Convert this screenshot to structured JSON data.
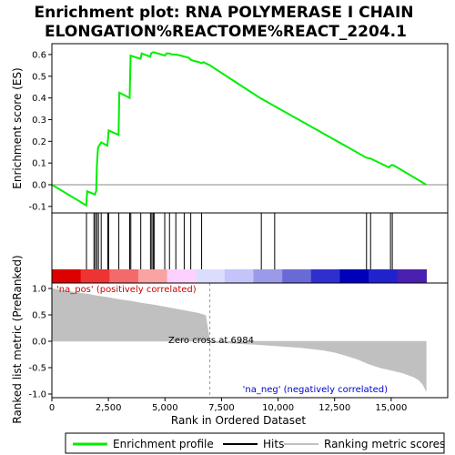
{
  "chart_data": {
    "type": "line",
    "title_line1": "Enrichment plot: RNA POLYMERASE I CHAIN",
    "title_line2": "ELONGATION%REACTOME%REACT_2204.1",
    "top_panel": {
      "ylabel": "Enrichment score (ES)",
      "ylim": [
        -0.13,
        0.65
      ],
      "yticks": [
        -0.1,
        0.0,
        0.1,
        0.2,
        0.3,
        0.4,
        0.5,
        0.6
      ],
      "ytick_labels": [
        "-0.1",
        "0.0",
        "0.1",
        "0.2",
        "0.3",
        "0.4",
        "0.5",
        "0.6"
      ],
      "line_color": "#00ee00",
      "series": [
        {
          "x": [
            0,
            1520,
            1560,
            1900,
            1960,
            1990,
            2040,
            2060,
            2180,
            2460,
            2510,
            2950,
            2980,
            3440,
            3480,
            3920,
            3970,
            4350,
            4390,
            4470,
            4520,
            5000,
            5060,
            5200,
            5300,
            5480,
            5700,
            5880,
            6060,
            6150,
            6300,
            6520,
            6620,
            6700,
            6984,
            9200,
            13900,
            14100,
            14900,
            15000,
            15100,
            16550
          ],
          "y": [
            0.0,
            -0.095,
            -0.03,
            -0.045,
            -0.03,
            0.09,
            0.17,
            0.175,
            0.195,
            0.18,
            0.25,
            0.23,
            0.425,
            0.4,
            0.595,
            0.58,
            0.605,
            0.59,
            0.605,
            0.61,
            0.61,
            0.595,
            0.605,
            0.605,
            0.6,
            0.6,
            0.595,
            0.59,
            0.585,
            0.575,
            0.57,
            0.565,
            0.56,
            0.565,
            0.55,
            0.4,
            0.125,
            0.12,
            0.08,
            0.09,
            0.09,
            0.0
          ]
        }
      ]
    },
    "hits": [
      1530,
      1860,
      1920,
      1990,
      2060,
      2180,
      2470,
      2510,
      2960,
      3440,
      3490,
      3930,
      4360,
      4420,
      4480,
      4520,
      4990,
      5200,
      5480,
      5850,
      6140,
      6620,
      9260,
      9850,
      13910,
      14090,
      14970,
      15050
    ],
    "ranking_bar_colors": [
      "#dd0000",
      "#ee3333",
      "#f46a6a",
      "#f9a3a3",
      "#fdd0fd",
      "#dcdcfd",
      "#c4c4fb",
      "#9a9ae8",
      "#6a6ad6",
      "#2f2fcf",
      "#0000bb",
      "#2222cc",
      "#4b1fb0"
    ],
    "bottom_panel": {
      "ylabel": "Ranked list metric (PreRanked)",
      "ylim": [
        -1.0,
        1.0
      ],
      "yticks": [
        -1.0,
        -0.5,
        0.0,
        0.5,
        1.0
      ],
      "ytick_labels": [
        "-1.0",
        "-0.5",
        "0.0",
        "0.5",
        "1.0"
      ],
      "metric_profile": {
        "x": [
          0,
          400,
          1000,
          1500,
          2000,
          2500,
          3000,
          3500,
          4000,
          4500,
          5000,
          5500,
          6000,
          6500,
          6800,
          6984,
          7000,
          8000,
          9000,
          10000,
          11000,
          12000,
          12500,
          13000,
          13500,
          14000,
          14500,
          15000,
          15500,
          16000,
          16200,
          16400,
          16550
        ],
        "y": [
          1.0,
          0.97,
          0.93,
          0.9,
          0.86,
          0.83,
          0.79,
          0.76,
          0.72,
          0.69,
          0.65,
          0.61,
          0.57,
          0.53,
          0.49,
          0.0,
          -0.02,
          -0.04,
          -0.06,
          -0.09,
          -0.12,
          -0.17,
          -0.21,
          -0.27,
          -0.34,
          -0.43,
          -0.5,
          -0.55,
          -0.6,
          -0.68,
          -0.73,
          -0.82,
          -0.95
        ]
      },
      "fill_color": "#c0c0c0",
      "zero_cross_label": "Zero cross at 6984",
      "pos_label": "'na_pos' (positively correlated)",
      "neg_label": "'na_neg' (negatively correlated)"
    },
    "xlabel": "Rank in Ordered Dataset",
    "xlim": [
      0,
      17500
    ],
    "xticks": [
      0,
      2500,
      5000,
      7500,
      10000,
      12500,
      15000
    ],
    "xtick_labels": [
      "0",
      "2,500",
      "5,000",
      "7,500",
      "10,000",
      "12,500",
      "15,000"
    ],
    "legend": {
      "items": [
        {
          "label": "Enrichment profile",
          "color": "#00ee00"
        },
        {
          "label": "Hits",
          "color": "#000000"
        },
        {
          "label": "Ranking metric scores",
          "color": "#c0c0c0"
        }
      ]
    }
  }
}
